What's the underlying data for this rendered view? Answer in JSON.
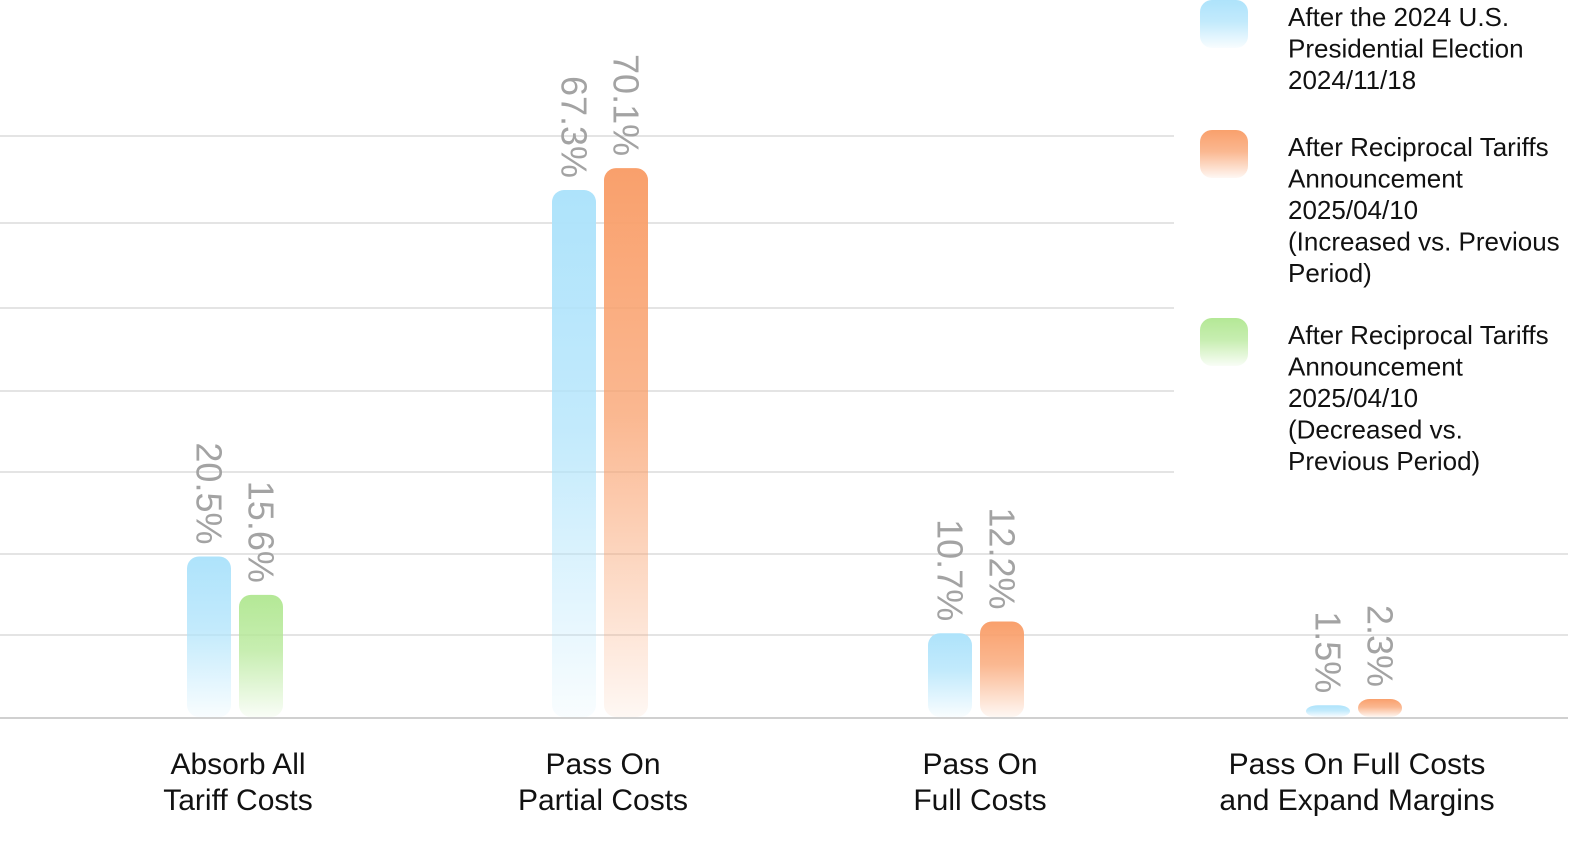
{
  "chart_data": {
    "type": "bar",
    "categories": [
      "Absorb All Tariff Costs",
      "Pass On Partial Costs",
      "Pass On Full Costs",
      "Pass On Full Costs and Expand Margins"
    ],
    "category_lines": [
      [
        "Absorb All",
        "Tariff Costs"
      ],
      [
        "Pass On",
        "Partial Costs"
      ],
      [
        "Pass On",
        "Full Costs"
      ],
      [
        "Pass On Full Costs",
        "and Expand Margins"
      ]
    ],
    "series": [
      {
        "name": "After the 2024 U.S. Presidential Election 2024/11/18",
        "name_lines": [
          "After the 2024 U.S.",
          "Presidential Election",
          "2024/11/18"
        ],
        "color": "#aee3fb",
        "values": [
          20.5,
          67.3,
          10.7,
          1.5
        ],
        "labels": [
          "20.5%",
          "67.3%",
          "10.7%",
          "1.5%"
        ]
      },
      {
        "name": "After Reciprocal Tariffs Announcement 2025/04/10 (Increased vs. Previous Period)",
        "name_lines": [
          "After Reciprocal Tariffs",
          "Announcement",
          "2025/04/10",
          "(Increased vs. Previous",
          "Period)"
        ],
        "color": "#f9a06c",
        "values": [
          null,
          70.1,
          12.2,
          2.3
        ],
        "labels": [
          null,
          "70.1%",
          "12.2%",
          "2.3%"
        ]
      },
      {
        "name": "After Reciprocal Tariffs Announcement 2025/04/10 (Decreased vs. Previous Period)",
        "name_lines": [
          "After Reciprocal Tariffs",
          "Announcement",
          "2025/04/10",
          "(Decreased vs.",
          "Previous Period)"
        ],
        "color": "#b4e896",
        "values": [
          15.6,
          null,
          null,
          null
        ],
        "labels": [
          "15.6%",
          null,
          null,
          null
        ]
      }
    ],
    "ylim": [
      0,
      80
    ],
    "grid": true,
    "legend_position": "top-right",
    "xlabel": "",
    "ylabel": ""
  }
}
